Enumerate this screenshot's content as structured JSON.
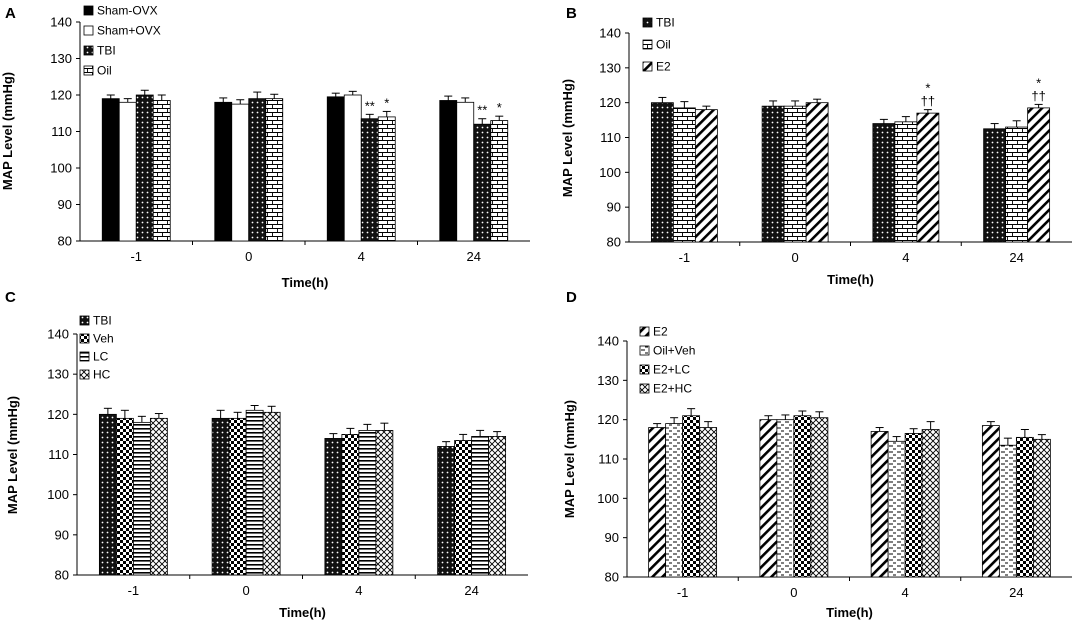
{
  "chart_data": [
    {
      "panel": "A",
      "type": "bar",
      "xlabel": "Time(h)",
      "ylabel": "MAP Level (mmHg)",
      "ylim": [
        80,
        140
      ],
      "yticks": [
        80,
        90,
        100,
        110,
        120,
        130,
        140
      ],
      "categories": [
        "-1",
        "0",
        "4",
        "24"
      ],
      "series": [
        {
          "name": "Sham-OVX",
          "pattern": "solid",
          "values": [
            119,
            118,
            119.5,
            118.5
          ],
          "errors": [
            1,
            1.2,
            1,
            1.2
          ]
        },
        {
          "name": "Sham+OVX",
          "pattern": "white",
          "values": [
            118,
            117.5,
            120,
            118
          ],
          "errors": [
            1,
            1.2,
            1,
            1.2
          ]
        },
        {
          "name": "TBI",
          "pattern": "dots",
          "values": [
            120,
            119,
            113.5,
            112
          ],
          "errors": [
            1.3,
            1.8,
            1.2,
            1.5
          ]
        },
        {
          "name": "Oil",
          "pattern": "bricks",
          "values": [
            118.5,
            119,
            114,
            113
          ],
          "errors": [
            1.5,
            1.2,
            1.5,
            1.2
          ]
        }
      ],
      "annotations": [
        {
          "category": "4",
          "series": "TBI",
          "text": "**"
        },
        {
          "category": "4",
          "series": "Oil",
          "text": "*"
        },
        {
          "category": "24",
          "series": "TBI",
          "text": "**"
        },
        {
          "category": "24",
          "series": "Oil",
          "text": "*"
        }
      ]
    },
    {
      "panel": "B",
      "type": "bar",
      "xlabel": "Time(h)",
      "ylabel": "MAP Level (mmHg)",
      "ylim": [
        80,
        140
      ],
      "yticks": [
        80,
        90,
        100,
        110,
        120,
        130,
        140
      ],
      "categories": [
        "-1",
        "0",
        "4",
        "24"
      ],
      "series": [
        {
          "name": "TBI",
          "pattern": "dots",
          "values": [
            120,
            119,
            114,
            112.5
          ],
          "errors": [
            1.5,
            1.5,
            1.2,
            1.5
          ]
        },
        {
          "name": "Oil",
          "pattern": "bricks",
          "values": [
            118.5,
            119,
            114.5,
            113
          ],
          "errors": [
            1.8,
            1.5,
            1.5,
            1.8
          ]
        },
        {
          "name": "E2",
          "pattern": "diagonal",
          "values": [
            118,
            120,
            117,
            118.5
          ],
          "errors": [
            1,
            1,
            1,
            1
          ]
        }
      ],
      "annotations": [
        {
          "category": "4",
          "series": "E2",
          "text": "*"
        },
        {
          "category": "4",
          "series": "E2",
          "text": "††"
        },
        {
          "category": "24",
          "series": "E2",
          "text": "*"
        },
        {
          "category": "24",
          "series": "E2",
          "text": "††"
        }
      ]
    },
    {
      "panel": "C",
      "type": "bar",
      "xlabel": "Time(h)",
      "ylabel": "MAP Level (mmHg)",
      "ylim": [
        80,
        140
      ],
      "yticks": [
        80,
        90,
        100,
        110,
        120,
        130,
        140
      ],
      "categories": [
        "-1",
        "0",
        "4",
        "24"
      ],
      "series": [
        {
          "name": "TBI",
          "pattern": "dots",
          "values": [
            120,
            119,
            114,
            112
          ],
          "errors": [
            1.5,
            2,
            1.2,
            1.2
          ]
        },
        {
          "name": "Veh",
          "pattern": "checker",
          "values": [
            119,
            119,
            115,
            113.5
          ],
          "errors": [
            2,
            1.5,
            1.5,
            1.5
          ]
        },
        {
          "name": "LC",
          "pattern": "hlines",
          "values": [
            118,
            121,
            116,
            114.5
          ],
          "errors": [
            1.5,
            1.2,
            1.5,
            1.5
          ]
        },
        {
          "name": "HC",
          "pattern": "crosshatch",
          "values": [
            119,
            120.5,
            116,
            114.5
          ],
          "errors": [
            1.2,
            1.5,
            1.8,
            1.2
          ]
        }
      ]
    },
    {
      "panel": "D",
      "type": "bar",
      "xlabel": "Time(h)",
      "ylabel": "MAP Level (mmHg)",
      "ylim": [
        80,
        140
      ],
      "yticks": [
        80,
        90,
        100,
        110,
        120,
        130,
        140
      ],
      "categories": [
        "-1",
        "0",
        "4",
        "24"
      ],
      "series": [
        {
          "name": "E2",
          "pattern": "diagonal",
          "values": [
            118,
            120,
            117,
            118.5
          ],
          "errors": [
            1,
            1,
            1,
            1
          ]
        },
        {
          "name": "Oil+Veh",
          "pattern": "dashes",
          "values": [
            119,
            120,
            114.5,
            113.5
          ],
          "errors": [
            1.5,
            1.2,
            1.2,
            1.8
          ]
        },
        {
          "name": "E2+LC",
          "pattern": "checker",
          "values": [
            121,
            121,
            116.5,
            115.5
          ],
          "errors": [
            1.8,
            1.2,
            1.2,
            2
          ]
        },
        {
          "name": "E2+HC",
          "pattern": "crosshatch",
          "values": [
            118,
            120.5,
            117.5,
            115
          ],
          "errors": [
            1.5,
            1.5,
            2,
            1.2
          ]
        }
      ]
    }
  ]
}
